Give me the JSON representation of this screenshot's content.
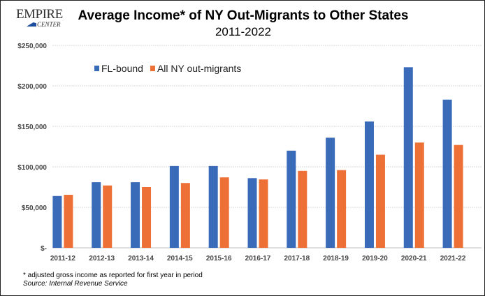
{
  "logo": {
    "line1": "EMPIRE",
    "line2": "CENTER"
  },
  "chart_data": {
    "type": "bar",
    "title": "Average Income* of NY Out-Migrants to Other States",
    "subtitle": "2011-2022",
    "xlabel": "",
    "ylabel": "",
    "ylim": [
      0,
      250000
    ],
    "yticks": [
      0,
      50000,
      100000,
      150000,
      200000,
      250000
    ],
    "ytick_labels": [
      "$-",
      "$50,000",
      "$100,000",
      "$150,000",
      "$200,000",
      "$250,000"
    ],
    "grid": true,
    "legend_position": "top-left",
    "categories": [
      "2011-12",
      "2012-13",
      "2013-14",
      "2014-15",
      "2015-16",
      "2016-17",
      "2017-18",
      "2018-19",
      "2019-20",
      "2020-21",
      "2021-22"
    ],
    "series": [
      {
        "name": "FL-bound",
        "color": "#3a6bb8",
        "values": [
          64000,
          81000,
          81000,
          101000,
          101000,
          86000,
          120000,
          136000,
          156000,
          223000,
          183000
        ]
      },
      {
        "name": "All NY out-migrants",
        "color": "#ed7136",
        "values": [
          65500,
          77000,
          75000,
          80000,
          87000,
          84500,
          95000,
          96000,
          115000,
          130000,
          127000
        ]
      }
    ]
  },
  "footnotes": {
    "note": "* adjusted gross income as reported for first year in period",
    "source": "Source: Internal Revenue Service"
  }
}
